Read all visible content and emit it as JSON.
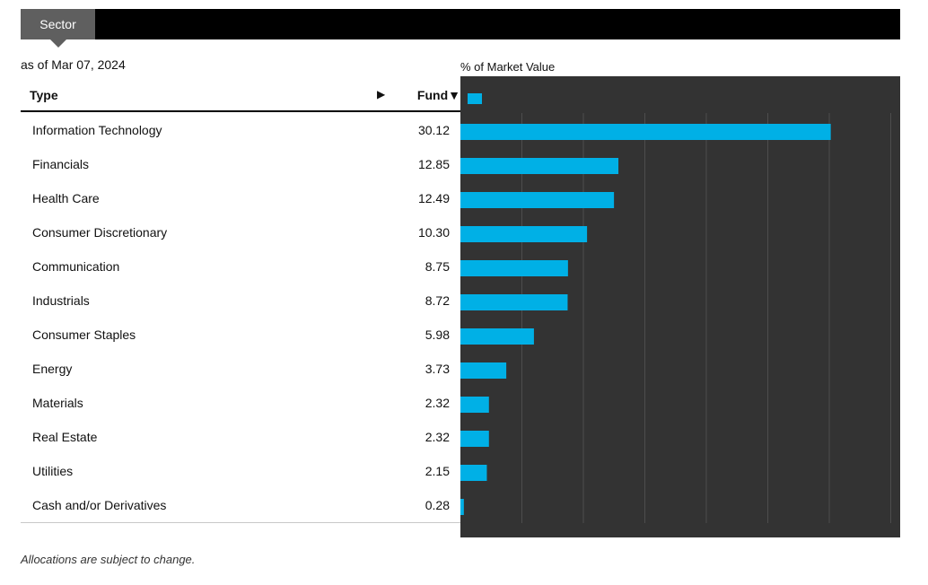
{
  "tab": {
    "label": "Sector"
  },
  "as_of": "as of Mar 07, 2024",
  "table": {
    "col_type": "Type",
    "col_fund": "Fund▼"
  },
  "chart_label": "% of Market Value",
  "footnote": "Allocations are subject to change.",
  "colors": {
    "bar": "#00b0e6",
    "panel": "#333333",
    "grid": "#4d4d4d"
  },
  "chart_data": {
    "type": "bar",
    "orientation": "horizontal",
    "categories": [
      "Information Technology",
      "Financials",
      "Health Care",
      "Consumer Discretionary",
      "Communication",
      "Industrials",
      "Consumer Staples",
      "Energy",
      "Materials",
      "Real Estate",
      "Utilities",
      "Cash and/or Derivatives"
    ],
    "values": [
      30.12,
      12.85,
      12.49,
      10.3,
      8.75,
      8.72,
      5.98,
      3.73,
      2.32,
      2.32,
      2.15,
      0.28
    ],
    "value_labels": [
      "30.12",
      "12.85",
      "12.49",
      "10.30",
      "8.75",
      "8.72",
      "5.98",
      "3.73",
      "2.32",
      "2.32",
      "2.15",
      "0.28"
    ],
    "xlim": [
      0,
      35
    ],
    "gridlines": [
      5,
      10,
      15,
      20,
      25,
      30,
      35
    ]
  }
}
